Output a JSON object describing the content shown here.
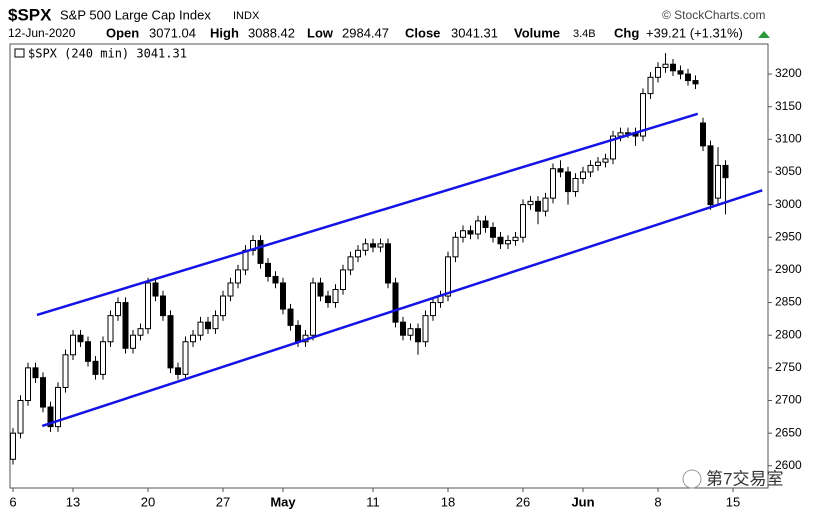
{
  "header": {
    "symbol": "$SPX",
    "name": "S&P 500 Large Cap Index",
    "exchange": "INDX",
    "source": "© StockCharts.com",
    "date": "12-Jun-2020",
    "open_label": "Open",
    "open": 3071.04,
    "high_label": "High",
    "high": 3088.42,
    "low_label": "Low",
    "low": 2984.47,
    "close_label": "Close",
    "close": 3041.31,
    "volume_label": "Volume",
    "volume": "3.4B",
    "chg_label": "Chg",
    "chg": "+39.21 (+1.31%)"
  },
  "watermark": "第7交易室",
  "chart_data": {
    "type": "candlestick",
    "legend": "$SPX (240 min) 3041.31",
    "color": "#000000",
    "categories": [
      "6",
      null,
      null,
      null,
      null,
      null,
      null,
      null,
      "13",
      null,
      null,
      null,
      null,
      null,
      null,
      null,
      null,
      null,
      "20",
      null,
      null,
      null,
      null,
      null,
      null,
      null,
      null,
      null,
      "27",
      null,
      null,
      null,
      null,
      null,
      null,
      null,
      "May",
      null,
      null,
      null,
      null,
      null,
      null,
      null,
      null,
      null,
      null,
      null,
      "11",
      null,
      null,
      null,
      null,
      null,
      null,
      null,
      null,
      null,
      "18",
      null,
      null,
      null,
      null,
      null,
      null,
      null,
      null,
      null,
      "26",
      null,
      null,
      null,
      null,
      null,
      null,
      null,
      "Jun",
      null,
      null,
      null,
      null,
      null,
      null,
      null,
      null,
      null,
      "8",
      null,
      null,
      null,
      null,
      null,
      null,
      null,
      null,
      null,
      "15"
    ],
    "open": [
      2610,
      2650,
      2700,
      2750,
      2735,
      2690,
      2660,
      2720,
      2770,
      2800,
      2790,
      2760,
      2740,
      2790,
      2830,
      2850,
      2780,
      2800,
      2810,
      2880,
      2860,
      2830,
      2750,
      2740,
      2790,
      2800,
      2820,
      2810,
      2830,
      2860,
      2880,
      2900,
      2930,
      2945,
      2910,
      2890,
      2880,
      2840,
      2815,
      2790,
      2800,
      2880,
      2860,
      2850,
      2870,
      2900,
      2920,
      2930,
      2940,
      2935,
      2940,
      2880,
      2820,
      2800,
      2810,
      2790,
      2830,
      2850,
      2860,
      2920,
      2950,
      2960,
      2955,
      2975,
      2965,
      2950,
      2940,
      2945,
      2950,
      3000,
      3005,
      2990,
      3010,
      3055,
      3050,
      3020,
      3040,
      3050,
      3060,
      3065,
      3070,
      3105,
      3110,
      3110,
      3105,
      3170,
      3195,
      3210,
      3215,
      3205,
      3200,
      3190,
      3125,
      3090,
      3010,
      3060,
      null
    ],
    "high": [
      2658,
      2708,
      2758,
      2758,
      2743,
      2698,
      2728,
      2778,
      2808,
      2808,
      2798,
      2768,
      2798,
      2838,
      2858,
      2858,
      2808,
      2818,
      2888,
      2888,
      2868,
      2838,
      2758,
      2798,
      2808,
      2828,
      2828,
      2838,
      2868,
      2888,
      2908,
      2938,
      2953,
      2953,
      2918,
      2898,
      2888,
      2848,
      2823,
      2808,
      2888,
      2888,
      2868,
      2878,
      2908,
      2928,
      2938,
      2948,
      2948,
      2948,
      2948,
      2888,
      2828,
      2818,
      2818,
      2838,
      2858,
      2868,
      2928,
      2958,
      2968,
      2968,
      2983,
      2983,
      2973,
      2958,
      2953,
      2958,
      3008,
      3013,
      3013,
      3018,
      3063,
      3068,
      3058,
      3048,
      3058,
      3068,
      3073,
      3078,
      3113,
      3118,
      3118,
      3118,
      3178,
      3203,
      3218,
      3232,
      3223,
      3213,
      3208,
      3198,
      3133,
      3098,
      3088,
      3068,
      null
    ],
    "low": [
      2602,
      2642,
      2692,
      2727,
      2682,
      2652,
      2652,
      2712,
      2762,
      2782,
      2752,
      2732,
      2732,
      2782,
      2822,
      2772,
      2772,
      2792,
      2802,
      2852,
      2822,
      2742,
      2732,
      2732,
      2782,
      2792,
      2802,
      2802,
      2822,
      2852,
      2872,
      2892,
      2922,
      2902,
      2882,
      2872,
      2832,
      2807,
      2782,
      2782,
      2792,
      2852,
      2842,
      2842,
      2862,
      2892,
      2912,
      2922,
      2927,
      2927,
      2872,
      2812,
      2792,
      2792,
      2770,
      2782,
      2822,
      2842,
      2852,
      2912,
      2942,
      2947,
      2947,
      2957,
      2942,
      2932,
      2932,
      2937,
      2942,
      2992,
      2970,
      2982,
      3002,
      3042,
      3000,
      3012,
      3032,
      3042,
      3052,
      3057,
      3062,
      3097,
      3102,
      3090,
      3097,
      3162,
      3187,
      3202,
      3197,
      3192,
      3182,
      3177,
      3082,
      2992,
      3002,
      2985,
      null
    ],
    "close": [
      2650,
      2700,
      2750,
      2735,
      2690,
      2660,
      2720,
      2770,
      2800,
      2790,
      2760,
      2740,
      2790,
      2830,
      2850,
      2780,
      2800,
      2810,
      2880,
      2860,
      2830,
      2750,
      2740,
      2790,
      2800,
      2820,
      2810,
      2830,
      2860,
      2880,
      2900,
      2930,
      2945,
      2910,
      2890,
      2880,
      2840,
      2815,
      2790,
      2800,
      2880,
      2860,
      2850,
      2870,
      2900,
      2920,
      2930,
      2940,
      2935,
      2940,
      2880,
      2820,
      2800,
      2810,
      2790,
      2830,
      2850,
      2860,
      2920,
      2950,
      2960,
      2955,
      2975,
      2965,
      2950,
      2940,
      2945,
      2950,
      3000,
      3005,
      2990,
      3010,
      3055,
      3050,
      3020,
      3040,
      3050,
      3060,
      3065,
      3070,
      3105,
      3110,
      3110,
      3105,
      3170,
      3195,
      3210,
      3215,
      3205,
      3200,
      3190,
      3185,
      3090,
      3000,
      3060,
      3041.31,
      null
    ],
    "trendlines": [
      {
        "color": "#1414e6",
        "x": [
          3.2,
          91.3
        ],
        "y": [
          2831,
          3139
        ]
      },
      {
        "color": "#1414e6",
        "x": [
          3.9,
          99.9
        ],
        "y": [
          2661,
          3022
        ]
      }
    ],
    "ylim": [
      2566,
      3246
    ],
    "yticks": [
      2600,
      2650,
      2700,
      2750,
      2800,
      2850,
      2900,
      2950,
      3000,
      3050,
      3100,
      3150,
      3200
    ]
  }
}
